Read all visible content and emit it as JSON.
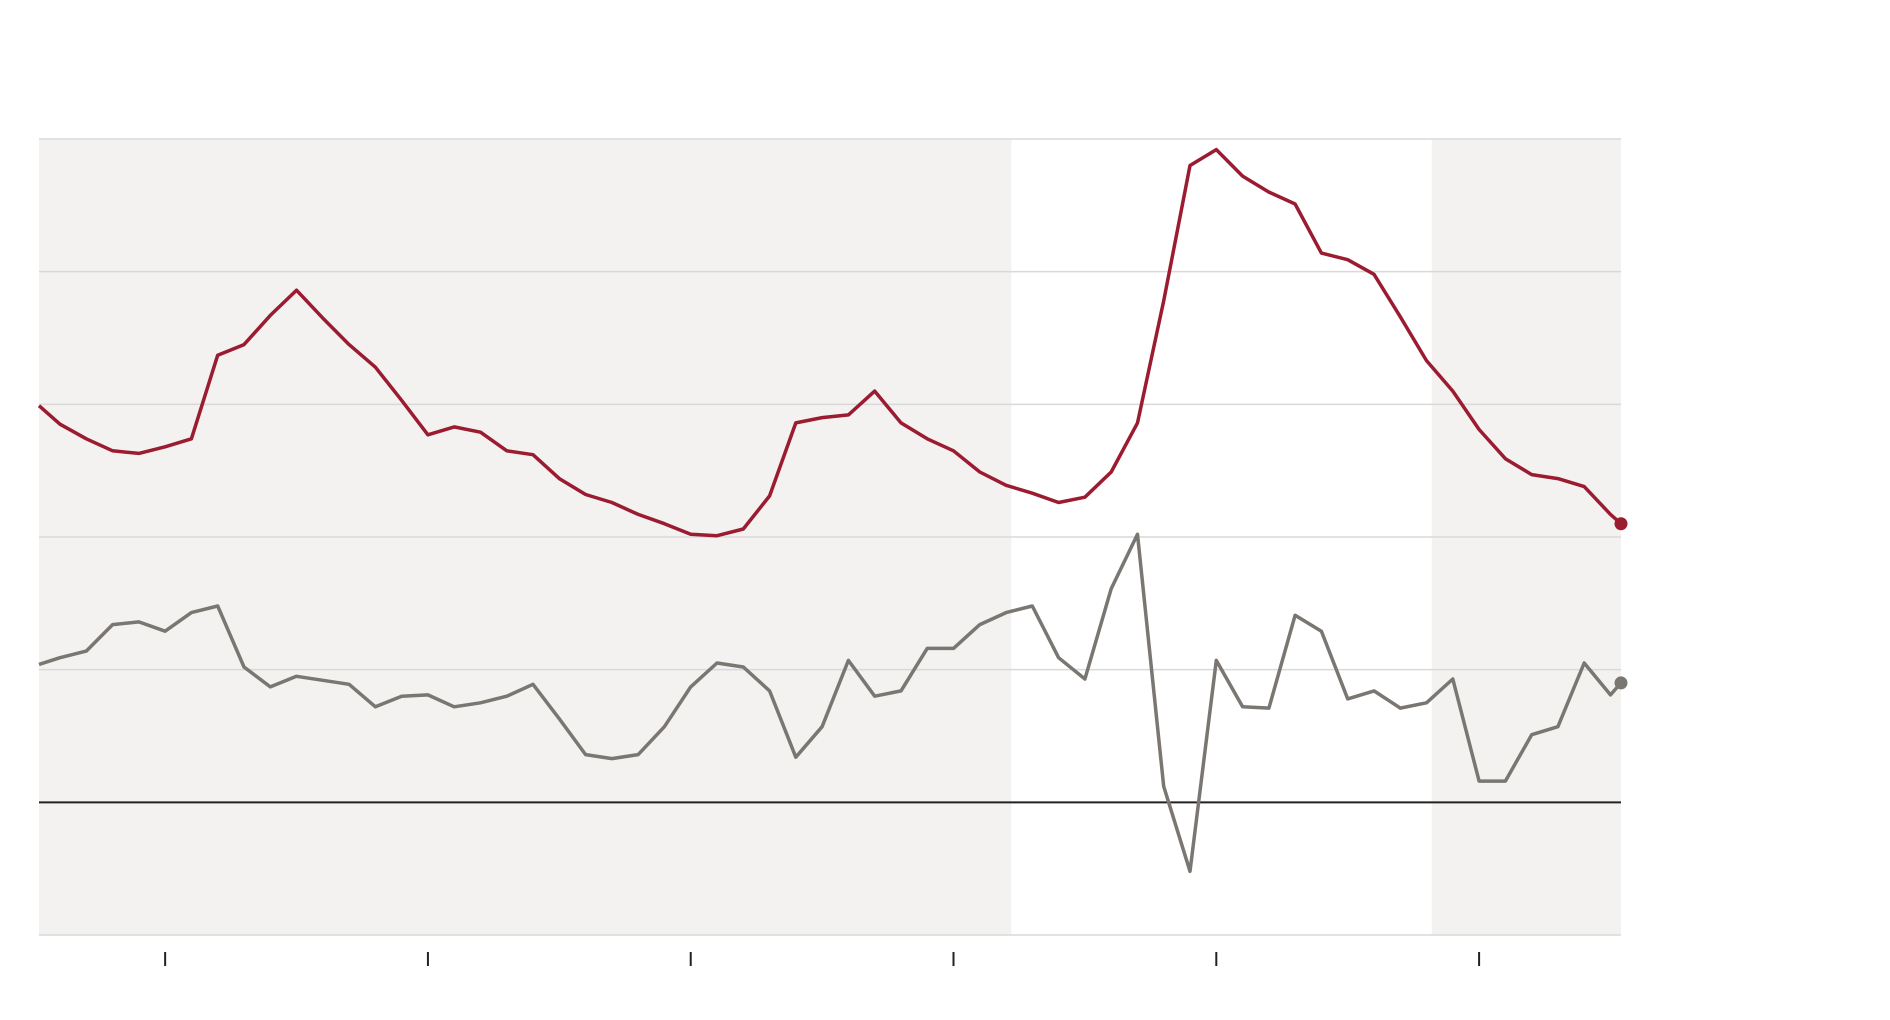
{
  "chart_data": {
    "type": "line",
    "title": "",
    "xlabel": "",
    "ylabel": "",
    "xlim": [
      -0.48,
      5.54
    ],
    "ylim": [
      -1,
      5
    ],
    "grid": true,
    "gridlines_y": [
      -1,
      0,
      1,
      2,
      3,
      4,
      5
    ],
    "baseline_y": 0,
    "x_ticks": [
      0,
      1,
      2,
      3,
      4,
      5
    ],
    "x_tick_labels": [],
    "shaded_ranges": [
      [
        -0.48,
        3.22
      ],
      [
        4.82,
        5.54
      ]
    ],
    "x": [
      -0.48,
      -0.4,
      -0.3,
      -0.2,
      -0.1,
      0,
      0.1,
      0.2,
      0.3,
      0.4,
      0.5,
      0.6,
      0.7,
      0.8,
      0.9,
      1.0,
      1.1,
      1.2,
      1.3,
      1.4,
      1.5,
      1.6,
      1.7,
      1.8,
      1.9,
      2.0,
      2.1,
      2.2,
      2.3,
      2.4,
      2.5,
      2.6,
      2.7,
      2.8,
      2.9,
      3.0,
      3.1,
      3.2,
      3.3,
      3.4,
      3.5,
      3.6,
      3.7,
      3.8,
      3.9,
      4.0,
      4.1,
      4.2,
      4.3,
      4.4,
      4.5,
      4.6,
      4.7,
      4.8,
      4.9,
      5.0,
      5.1,
      5.2,
      5.3,
      5.4,
      5.5,
      5.54
    ],
    "series": [
      {
        "color": "#9b1b30",
        "end_marker": true,
        "values": [
          2.99,
          2.85,
          2.74,
          2.65,
          2.63,
          2.68,
          2.74,
          3.37,
          3.45,
          3.67,
          3.86,
          3.65,
          3.45,
          3.28,
          3.03,
          2.77,
          2.83,
          2.79,
          2.65,
          2.62,
          2.44,
          2.32,
          2.26,
          2.17,
          2.1,
          2.02,
          2.01,
          2.06,
          2.31,
          2.86,
          2.9,
          2.92,
          3.1,
          2.86,
          2.74,
          2.65,
          2.49,
          2.39,
          2.33,
          2.26,
          2.3,
          2.49,
          2.86,
          3.78,
          4.8,
          4.92,
          4.72,
          4.6,
          4.51,
          4.14,
          4.09,
          3.98,
          3.66,
          3.33,
          3.1,
          2.81,
          2.59,
          2.47,
          2.44,
          2.38,
          2.17,
          2.1
        ]
      },
      {
        "color": "#7a7672",
        "end_marker": true,
        "values": [
          1.04,
          1.09,
          1.14,
          1.34,
          1.36,
          1.29,
          1.43,
          1.48,
          1.02,
          0.87,
          0.95,
          0.92,
          0.89,
          0.72,
          0.8,
          0.81,
          0.72,
          0.75,
          0.8,
          0.89,
          0.63,
          0.36,
          0.33,
          0.36,
          0.57,
          0.87,
          1.05,
          1.02,
          0.84,
          0.34,
          0.57,
          1.07,
          0.8,
          0.84,
          1.16,
          1.16,
          1.34,
          1.43,
          1.48,
          1.09,
          0.93,
          1.61,
          2.02,
          0.12,
          -0.52,
          1.07,
          0.72,
          0.71,
          1.41,
          1.29,
          0.78,
          0.84,
          0.71,
          0.75,
          0.93,
          0.16,
          0.16,
          0.51,
          0.57,
          1.05,
          0.81,
          0.9
        ]
      }
    ],
    "colors": {
      "shading": "#f3f2f1",
      "grid": "#d9d9d9",
      "baseline": "#222222",
      "tick": "#222222"
    }
  }
}
